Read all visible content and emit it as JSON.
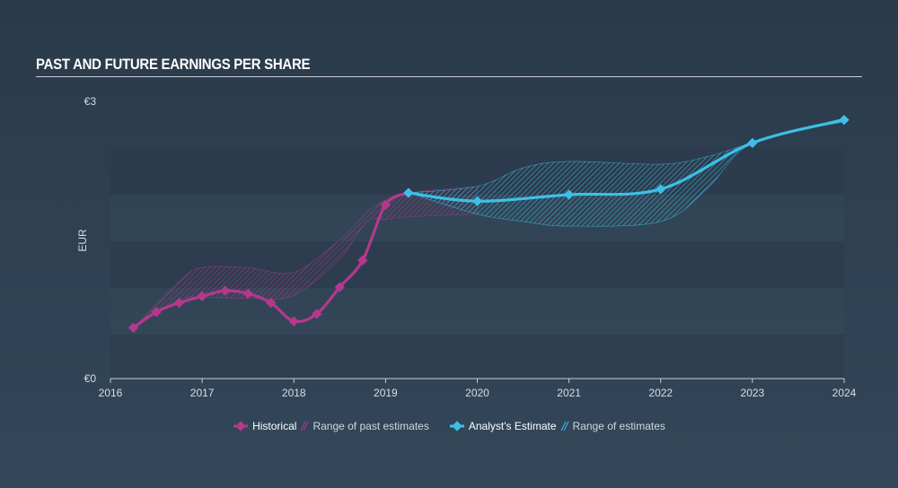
{
  "title": "PAST AND FUTURE EARNINGS PER SHARE",
  "colors": {
    "historical": "#b5388c",
    "estimate": "#3ec0e6",
    "band_dark": "#2c3b4c",
    "band_light": "#34485a"
  },
  "legend": {
    "historical": "Historical",
    "past_range": "Range of past estimates",
    "estimate": "Analyst's Estimate",
    "future_range": "Range of estimates"
  },
  "chart_data": {
    "type": "line",
    "ylabel": "EUR",
    "y_tick_labels": [
      "€0",
      "€3"
    ],
    "ylim": [
      0,
      3
    ],
    "xlim": [
      2016,
      2024
    ],
    "x_ticks": [
      "2016",
      "2017",
      "2018",
      "2019",
      "2020",
      "2021",
      "2022",
      "2023",
      "2024"
    ],
    "series": [
      {
        "name": "Historical",
        "points": [
          [
            2016.25,
            0.55
          ],
          [
            2016.5,
            0.72
          ],
          [
            2016.75,
            0.82
          ],
          [
            2017.0,
            0.89
          ],
          [
            2017.25,
            0.95
          ],
          [
            2017.5,
            0.92
          ],
          [
            2017.75,
            0.82
          ],
          [
            2018.0,
            0.62
          ],
          [
            2018.25,
            0.7
          ],
          [
            2018.5,
            0.99
          ],
          [
            2018.75,
            1.28
          ],
          [
            2019.0,
            1.88
          ],
          [
            2019.25,
            2.01
          ]
        ]
      },
      {
        "name": "Analyst's Estimate",
        "points": [
          [
            2019.25,
            2.01
          ],
          [
            2020.0,
            1.92
          ],
          [
            2021.0,
            1.99
          ],
          [
            2022.0,
            2.05
          ],
          [
            2023.0,
            2.55
          ],
          [
            2024.0,
            2.8
          ]
        ]
      }
    ],
    "past_range": {
      "upper": [
        [
          2016.25,
          0.55
        ],
        [
          2016.75,
          1.05
        ],
        [
          2017.0,
          1.2
        ],
        [
          2017.5,
          1.2
        ],
        [
          2018.0,
          1.15
        ],
        [
          2018.5,
          1.5
        ],
        [
          2018.8,
          1.8
        ],
        [
          2019.0,
          1.93
        ],
        [
          2019.25,
          2.01
        ],
        [
          2020.0,
          2.08
        ]
      ],
      "lower": [
        [
          2016.25,
          0.55
        ],
        [
          2016.75,
          0.85
        ],
        [
          2017.0,
          0.88
        ],
        [
          2017.5,
          0.87
        ],
        [
          2018.0,
          0.9
        ],
        [
          2018.5,
          1.3
        ],
        [
          2018.8,
          1.7
        ],
        [
          2019.0,
          1.72
        ],
        [
          2019.25,
          1.75
        ],
        [
          2020.0,
          1.78
        ]
      ]
    },
    "future_range": {
      "upper": [
        [
          2019.25,
          2.01
        ],
        [
          2020.0,
          2.08
        ],
        [
          2020.5,
          2.28
        ],
        [
          2021.0,
          2.35
        ],
        [
          2022.0,
          2.32
        ],
        [
          2022.5,
          2.4
        ],
        [
          2023.0,
          2.55
        ],
        [
          2024.0,
          2.82
        ]
      ],
      "lower": [
        [
          2019.25,
          2.01
        ],
        [
          2020.0,
          1.78
        ],
        [
          2020.5,
          1.7
        ],
        [
          2021.0,
          1.65
        ],
        [
          2022.0,
          1.7
        ],
        [
          2022.5,
          2.05
        ],
        [
          2023.0,
          2.55
        ],
        [
          2024.0,
          2.78
        ]
      ]
    }
  }
}
